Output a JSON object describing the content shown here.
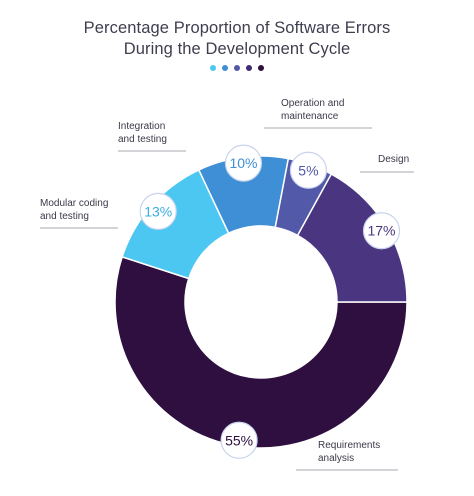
{
  "title_line1": "Percentage Proportion of Software Errors",
  "title_line2": "During the Development Cycle",
  "dot_colors": [
    "#4cc7f2",
    "#3f8fd6",
    "#5159a8",
    "#3f2c74",
    "#2e0f3f"
  ],
  "chart_data": {
    "type": "pie",
    "donut": true,
    "categories": [
      "Requirements analysis",
      "Modular coding and testing",
      "Integration and testing",
      "Operation and maintenance",
      "Design"
    ],
    "values": [
      55,
      13,
      10,
      5,
      17
    ],
    "value_labels": [
      "55%",
      "13%",
      "10%",
      "5%",
      "17%"
    ],
    "label_lines": [
      [
        "Requirements",
        "analysis"
      ],
      [
        "Modular coding",
        "and testing"
      ],
      [
        "Integration",
        "and testing"
      ],
      [
        "Operation and",
        "maintenance"
      ],
      [
        "Design"
      ]
    ],
    "colors": [
      "#2e0f3f",
      "#4cc7f2",
      "#3f8fd6",
      "#5159a8",
      "#4a3580"
    ]
  }
}
